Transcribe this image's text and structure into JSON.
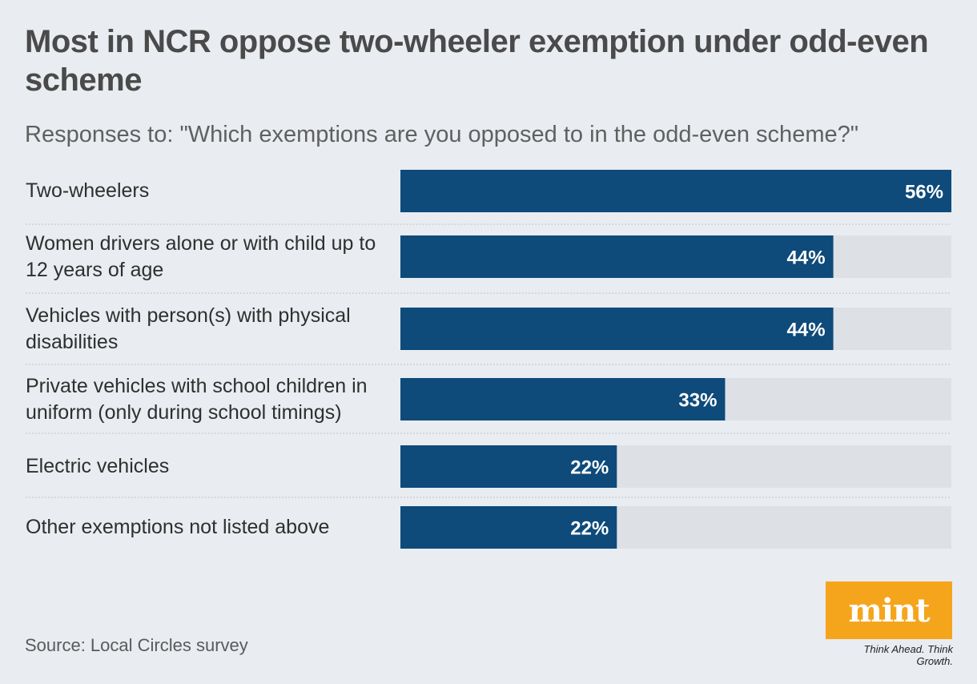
{
  "chart_data": {
    "type": "bar",
    "orientation": "horizontal",
    "title": "Most in NCR oppose two-wheeler exemption under odd-even scheme",
    "subtitle": "Responses to: \"Which exemptions are you opposed to in the odd-even scheme?\"",
    "categories": [
      "Two-wheelers",
      "Women drivers alone or with child up to 12 years of age",
      "Vehicles with person(s) with physical disabilities",
      "Private vehicles with school children in uniform (only during school timings)",
      "Electric vehicles",
      "Other exemptions not listed above"
    ],
    "values": [
      56,
      44,
      44,
      33,
      22,
      22
    ],
    "value_labels": [
      "56%",
      "44%",
      "44%",
      "33%",
      "22%",
      "22%"
    ],
    "unit": "%",
    "xlim": [
      0,
      56
    ],
    "colors": {
      "bar": "#0e4a7a",
      "track": "#dde0e4",
      "value_text": "#ffffff"
    }
  },
  "source": "Source: Local Circles survey",
  "logo": {
    "text": "mint",
    "tagline": "Think Ahead. Think Growth.",
    "color": "#f5a51c"
  }
}
